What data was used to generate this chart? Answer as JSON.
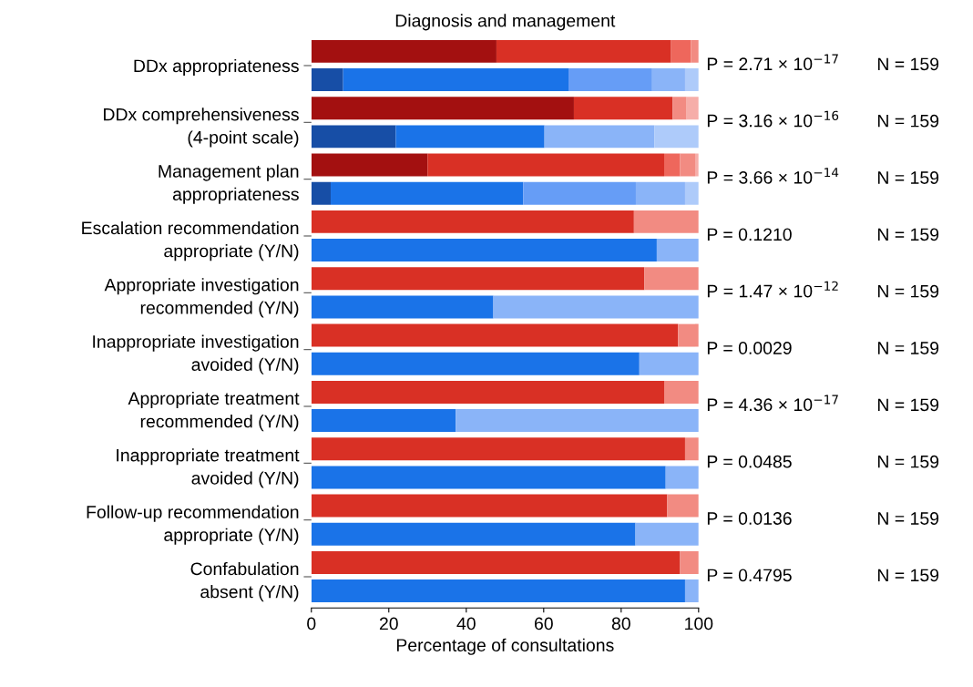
{
  "chart_data": {
    "type": "bar",
    "orientation": "horizontal",
    "stacked": true,
    "title": "Diagnosis and management",
    "xlabel": "Percentage of consultations",
    "categories": [
      "DDx appropriateness",
      null,
      "DDx comprehensiveness\n(4-point scale)",
      null,
      "Management plan\nappropriateness",
      null,
      "Escalation recommendation\nappropriate (Y/N)",
      null,
      "Appropriate investigation\nrecommended (Y/N)",
      null,
      "Inappropriate investigation\navoided (Y/N)",
      null,
      "Appropriate treatment\nrecommended (Y/N)",
      null,
      "Inappropriate treatment\navoided (Y/N)",
      null,
      "Follow-up recommendation\nappropriate (Y/N)",
      null,
      "Confabulation\nabsent (Y/N)",
      null
    ],
    "series": [
      {
        "color": "#a31010",
        "values": [
          47.8,
          null,
          67.8,
          null,
          30.0,
          null,
          null,
          null,
          null,
          null,
          null,
          null,
          null,
          null,
          null,
          null,
          null,
          null,
          null,
          null
        ]
      },
      {
        "color": "#d93025",
        "values": [
          45.1,
          null,
          25.5,
          null,
          61.1,
          null,
          83.3,
          null,
          86.0,
          null,
          94.7,
          null,
          91.1,
          null,
          96.5,
          null,
          91.9,
          null,
          95.2,
          null
        ]
      },
      {
        "color": "#ee675c",
        "values": [
          5.1,
          null,
          null,
          null,
          4.1,
          null,
          null,
          null,
          null,
          null,
          null,
          null,
          null,
          null,
          null,
          null,
          null,
          null,
          null,
          null
        ]
      },
      {
        "color": "#f28b82",
        "values": [
          2.0,
          null,
          3.6,
          null,
          3.9,
          null,
          16.7,
          null,
          14.0,
          null,
          5.3,
          null,
          8.9,
          null,
          3.5,
          null,
          8.1,
          null,
          4.8,
          null
        ]
      },
      {
        "color": "#f6aea9",
        "values": [
          null,
          null,
          3.1,
          null,
          0.9,
          null,
          null,
          null,
          null,
          null,
          null,
          null,
          null,
          null,
          null,
          null,
          null,
          null,
          null,
          null
        ]
      },
      {
        "color": "#174ea6",
        "values": [
          null,
          8.2,
          null,
          21.8,
          null,
          5.0,
          null,
          null,
          null,
          null,
          null,
          null,
          null,
          null,
          null,
          null,
          null,
          null,
          null,
          null
        ]
      },
      {
        "color": "#1a73e8",
        "values": [
          null,
          58.2,
          null,
          38.4,
          null,
          49.7,
          null,
          89.2,
          null,
          47.0,
          null,
          84.7,
          null,
          37.3,
          null,
          91.5,
          null,
          83.7,
          null,
          96.5
        ]
      },
      {
        "color": "#669df6",
        "values": [
          null,
          21.6,
          null,
          null,
          null,
          29.1,
          null,
          null,
          null,
          null,
          null,
          null,
          null,
          null,
          null,
          null,
          null,
          null,
          null,
          null
        ]
      },
      {
        "color": "#8ab4f8",
        "values": [
          null,
          8.5,
          null,
          28.4,
          null,
          12.7,
          null,
          10.8,
          null,
          53.0,
          null,
          15.3,
          null,
          62.7,
          null,
          8.5,
          null,
          16.3,
          null,
          3.5
        ]
      },
      {
        "color": "#aecbfa",
        "values": [
          null,
          3.5,
          null,
          11.4,
          null,
          3.5,
          null,
          null,
          null,
          null,
          null,
          null,
          null,
          null,
          null,
          null,
          null,
          null,
          null,
          null
        ]
      }
    ],
    "xlim": [
      0,
      100
    ],
    "xticks": [
      0,
      20,
      40,
      60,
      80,
      100
    ],
    "grid": false,
    "legend": false,
    "annotations": [
      "P = 2.71 × 10$^{−17}$",
      "N = 159",
      "P = 3.16 × 10$^{−16}$",
      "N = 159",
      "P = 3.66 × 10$^{−14}$",
      "N = 159",
      "P = 0.1210",
      "N = 159",
      "P = 1.47 × 10$^{−12}$",
      "N = 159",
      "P = 0.0029",
      "N = 159",
      "P = 4.36 × 10$^{−17}$",
      "N = 159",
      "P = 0.0485",
      "N = 159",
      "P = 0.0136",
      "N = 159",
      "P = 0.4795",
      "N = 159"
    ]
  }
}
